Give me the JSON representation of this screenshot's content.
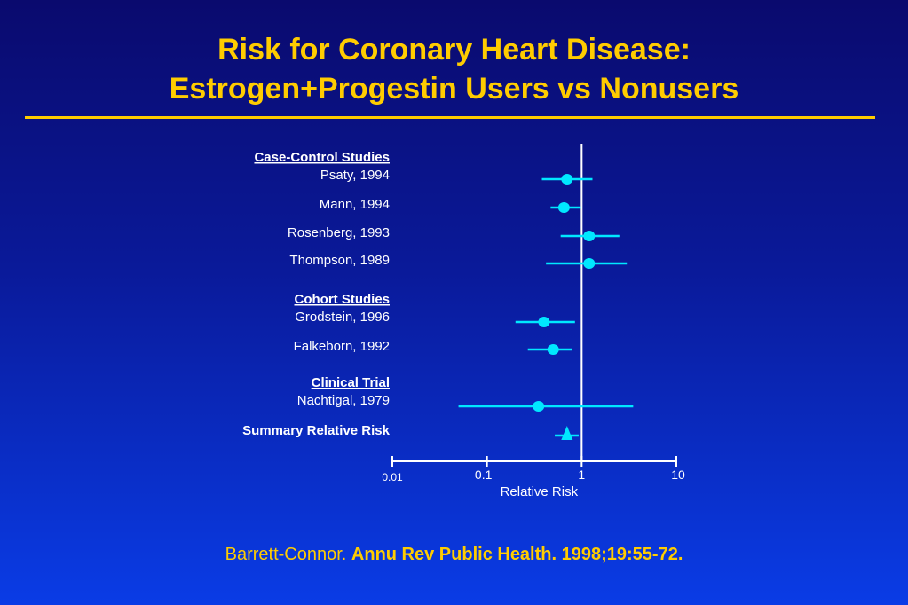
{
  "slide": {
    "title_line1": "Risk for Coronary Heart Disease:",
    "title_line2": "Estrogen+Progestin Users vs Nonusers",
    "citation_author": "Barrett-Connor.",
    "citation_source": "Annu Rev Public Health. 1998;19:55-72."
  },
  "colors": {
    "background_top": "#0a0a6e",
    "background_bottom": "#0a3ce6",
    "title": "#ffcc00",
    "marker": "#00e8ff",
    "axis": "#ffffff",
    "text": "#ffffff"
  },
  "chart_data": {
    "type": "forest",
    "xscale": "log",
    "xlim": [
      0.01,
      10
    ],
    "xlabel": "Relative Risk",
    "reference_value": 1,
    "ticks": [
      {
        "value": 0.01,
        "label": "0.01"
      },
      {
        "value": 0.1,
        "label": "0.1"
      },
      {
        "value": 1,
        "label": "1"
      },
      {
        "value": 10,
        "label": "10"
      }
    ],
    "groups": [
      {
        "heading": "Case-Control Studies",
        "studies": [
          {
            "label": "Psaty, 1994",
            "rr": 0.7,
            "ci": [
              0.38,
              1.3
            ]
          },
          {
            "label": "Mann, 1994",
            "rr": 0.65,
            "ci": [
              0.47,
              0.98
            ]
          },
          {
            "label": "Rosenberg, 1993",
            "rr": 1.2,
            "ci": [
              0.6,
              2.5
            ]
          },
          {
            "label": "Thompson, 1989",
            "rr": 1.2,
            "ci": [
              0.42,
              3.0
            ]
          }
        ]
      },
      {
        "heading": "Cohort Studies",
        "studies": [
          {
            "label": "Grodstein, 1996",
            "rr": 0.4,
            "ci": [
              0.2,
              0.85
            ]
          },
          {
            "label": "Falkeborn, 1992",
            "rr": 0.5,
            "ci": [
              0.27,
              0.8
            ]
          }
        ]
      },
      {
        "heading": "Clinical Trial",
        "studies": [
          {
            "label": "Nachtigal, 1979",
            "rr": 0.35,
            "ci": [
              0.05,
              3.5
            ]
          }
        ]
      }
    ],
    "summary": {
      "label": "Summary Relative Risk",
      "rr": 0.7,
      "ci": [
        0.52,
        0.93
      ]
    }
  }
}
